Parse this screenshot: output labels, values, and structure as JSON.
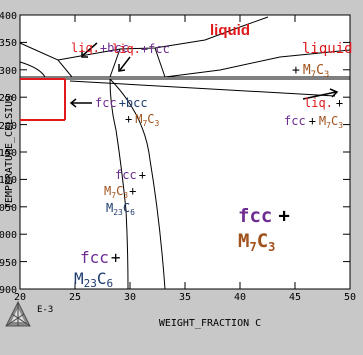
{
  "axes": {
    "ylabel": "TEMPERATURE_CELSIUS",
    "xlabel": "WEIGHT_FRACTION C",
    "x_unit": "E-3",
    "x_ticks": [
      "20",
      "25",
      "30",
      "35",
      "40",
      "45",
      "50"
    ],
    "y_ticks": [
      "1400",
      "1350",
      "1300",
      "1250",
      "1200",
      "1150",
      "1100",
      "1050",
      "1000",
      "950",
      "900"
    ],
    "xlim": [
      20,
      50
    ],
    "ylim": [
      900,
      1400
    ]
  },
  "regions": {
    "liq_bcc": {
      "a": "liq.",
      "b": "+",
      "c": "bcc"
    },
    "liquid_top": "liquid",
    "liq_fcc": {
      "a": "liq.",
      "b": "+",
      "c": "fcc"
    },
    "liquid_m7c3": {
      "a": "liquid",
      "plus": "+",
      "m": "M",
      "s7": "7",
      "c": "C",
      "s3": "3"
    },
    "fcc_bcc_m7c3": {
      "a": "fcc",
      "b": "+bcc",
      "plus": "+",
      "m": "M",
      "s7": "7",
      "c": "C",
      "s3": "3"
    },
    "liq_fcc_m7c3": {
      "a": "liq.",
      "b": "+",
      "fcc": "fcc",
      "plus": "+",
      "m": "M",
      "s7": "7",
      "c": "C",
      "s3": "3"
    },
    "fcc_m7c3_m23c6": {
      "a": "fcc",
      "b": "+",
      "m": "M",
      "s7": "7",
      "c": "C",
      "s3": "3",
      "plus": "+",
      "m2": "M",
      "s23": "23",
      "c2": "C",
      "s6": "6"
    },
    "fcc_m7c3_big": {
      "a": "fcc",
      "b": "+",
      "m": "M",
      "s7": "7",
      "c": "C",
      "s3": "3"
    },
    "fcc_m23c6": {
      "a": "fcc",
      "b": "+",
      "m": "M",
      "s23": "23",
      "c": "C",
      "s6": "6"
    }
  },
  "colors": {
    "background": "#c8c8c8",
    "plot_bg": "#ffffff",
    "red": "#e0191b",
    "purple": "#6d2c91",
    "brown": "#a0521d",
    "navy": "#1f3d70",
    "red_line": "#e0191b"
  },
  "logo_icon": "thermo-calc-logo-icon"
}
